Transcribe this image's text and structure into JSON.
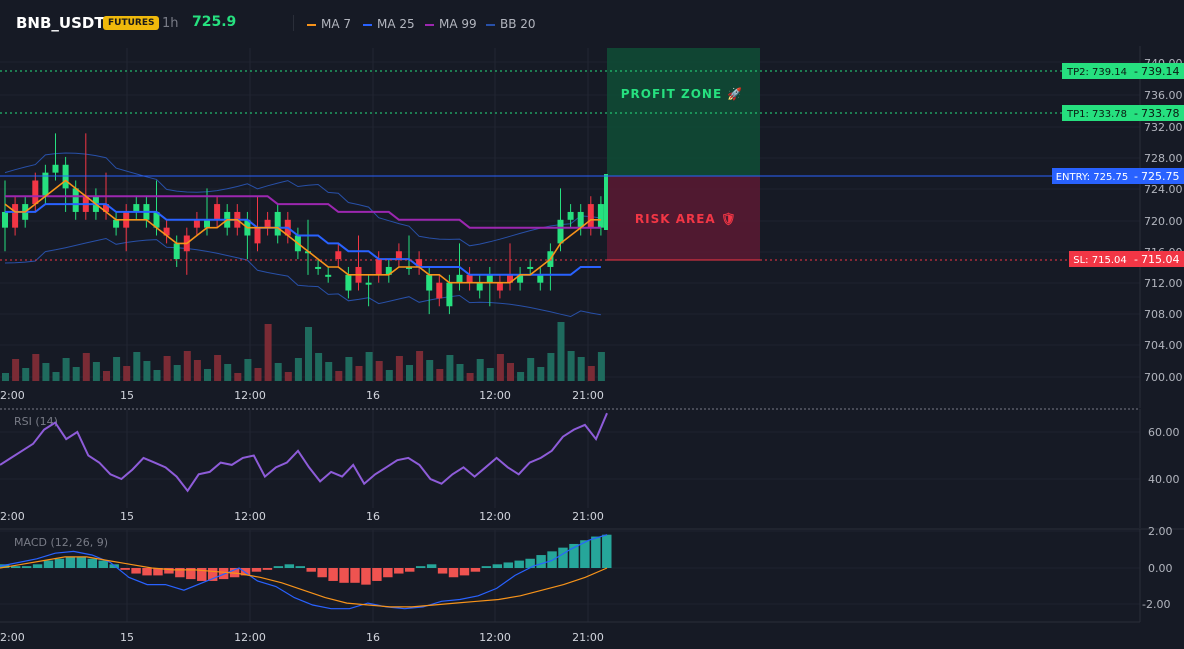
{
  "header": {
    "symbol": "BNB_USDT",
    "badge": "FUTURES",
    "timeframe": "1h",
    "price": "725.9",
    "legend": [
      {
        "label": "MA 7",
        "color": "#f7931a"
      },
      {
        "label": "MA 25",
        "color": "#2962ff"
      },
      {
        "label": "MA 99",
        "color": "#9c27b0"
      },
      {
        "label": "BB 20",
        "color": "#2850a8"
      }
    ]
  },
  "colors": {
    "up": "#26e07f",
    "down": "#f23645",
    "vol_up": "#1f6b5e",
    "vol_down": "#7a2b35",
    "rsi": "#8e5cd9",
    "macd": "#2962ff",
    "signal": "#f7931a"
  },
  "levels": {
    "tp2": {
      "label": "TP2: 739.14",
      "value": "739.14",
      "price": 739.14
    },
    "tp1": {
      "label": "TP1: 733.78",
      "value": "733.78",
      "price": 733.78
    },
    "entry": {
      "label": "ENTRY: 725.75",
      "value": "725.75",
      "price": 725.75
    },
    "sl": {
      "label": "SL: 715.04",
      "value": "715.04",
      "price": 715.04
    }
  },
  "zones": {
    "profit": "PROFIT ZONE 🚀",
    "risk": "RISK AREA 🛡"
  },
  "price_axis": [
    "740.00",
    "736.00",
    "732.00",
    "728.00",
    "724.00",
    "720.00",
    "716.00",
    "712.00",
    "708.00",
    "704.00",
    "700.00"
  ],
  "time_axis": [
    "2:00",
    "15",
    "12:00",
    "16",
    "12:00",
    "21:00"
  ],
  "rsi": {
    "title": "RSI (14)",
    "axis": [
      "60.00",
      "40.00"
    ],
    "values": [
      46,
      49,
      52,
      55,
      61,
      64,
      57,
      60,
      50,
      47,
      42,
      40,
      44,
      49,
      47,
      45,
      41,
      35,
      42,
      43,
      47,
      46,
      49,
      50,
      41,
      45,
      47,
      52,
      45,
      39,
      43,
      41,
      46,
      38,
      42,
      45,
      48,
      49,
      46,
      40,
      38,
      42,
      45,
      41,
      45,
      49,
      45,
      42,
      47,
      49,
      52,
      58,
      61,
      63,
      57,
      68
    ]
  },
  "macd": {
    "title": "MACD (12, 26, 9)",
    "axis": [
      "2.00",
      "0.00",
      "-2.00"
    ],
    "hist": [
      0.2,
      0.1,
      0.1,
      0.2,
      0.4,
      0.5,
      0.6,
      0.6,
      0.5,
      0.4,
      0.2,
      -0.1,
      -0.3,
      -0.4,
      -0.4,
      -0.3,
      -0.5,
      -0.6,
      -0.7,
      -0.7,
      -0.6,
      -0.5,
      -0.4,
      -0.2,
      -0.1,
      0.1,
      0.2,
      0.1,
      -0.2,
      -0.5,
      -0.7,
      -0.8,
      -0.8,
      -0.9,
      -0.7,
      -0.5,
      -0.3,
      -0.2,
      0.1,
      0.2,
      -0.3,
      -0.5,
      -0.4,
      -0.2,
      0.1,
      0.2,
      0.3,
      0.4,
      0.5,
      0.7,
      0.9,
      1.1,
      1.3,
      1.5,
      1.7,
      1.8
    ],
    "macd_line": [
      0.1,
      0.3,
      0.5,
      0.8,
      0.9,
      0.7,
      0.3,
      -0.5,
      -0.9,
      -0.9,
      -1.2,
      -0.8,
      -0.4,
      0.0,
      -0.7,
      -1.0,
      -1.6,
      -2.0,
      -2.2,
      -2.2,
      -1.9,
      -2.1,
      -2.2,
      -2.1,
      -1.8,
      -1.7,
      -1.5,
      -1.1,
      -0.4,
      0.1,
      0.4,
      1.0,
      1.5,
      1.8
    ],
    "signal_line": [
      0.0,
      0.2,
      0.4,
      0.6,
      0.6,
      0.4,
      0.2,
      0.0,
      -0.1,
      -0.1,
      -0.2,
      -0.3,
      -0.5,
      -0.8,
      -1.2,
      -1.6,
      -1.9,
      -2.0,
      -2.1,
      -2.1,
      -2.0,
      -1.9,
      -1.8,
      -1.7,
      -1.5,
      -1.2,
      -0.9,
      -0.5,
      0.0
    ]
  }
}
